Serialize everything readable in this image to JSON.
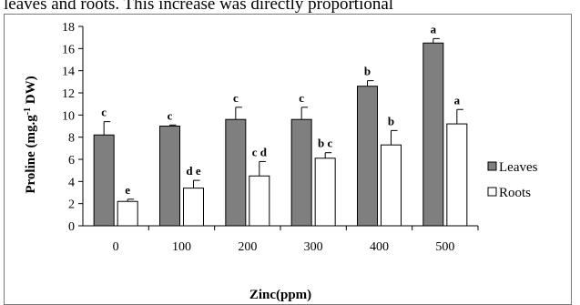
{
  "caption_text": "leaves and roots. This increase was directly proportional",
  "chart_data": {
    "type": "bar",
    "categories": [
      "0",
      "100",
      "200",
      "300",
      "400",
      "500"
    ],
    "xlabel": "Zinc(ppm)",
    "ylabel_main": "Proline (mg.g",
    "ylabel_sup": "-1",
    "ylabel_tail": " DW)",
    "ylim": [
      0,
      18
    ],
    "yticks": [
      "0",
      "2",
      "4",
      "6",
      "8",
      "10",
      "12",
      "14",
      "16",
      "18"
    ],
    "grid": false,
    "legend_position": "right",
    "series": [
      {
        "name": "Leaves",
        "color": "#7f7f7f",
        "values": [
          8.2,
          9.0,
          9.6,
          9.6,
          12.6,
          16.5
        ],
        "errors": [
          1.2,
          0.1,
          1.1,
          1.1,
          0.5,
          0.4
        ],
        "labels": [
          "c",
          "c",
          "c",
          "c",
          "b",
          "a"
        ]
      },
      {
        "name": "Roots",
        "color": "#ffffff",
        "values": [
          2.2,
          3.4,
          4.5,
          6.1,
          7.3,
          9.2
        ],
        "errors": [
          0.2,
          0.7,
          1.3,
          0.5,
          1.3,
          1.3
        ],
        "labels": [
          "e",
          "d e",
          "c d",
          "b c",
          "b",
          "a"
        ]
      }
    ]
  }
}
